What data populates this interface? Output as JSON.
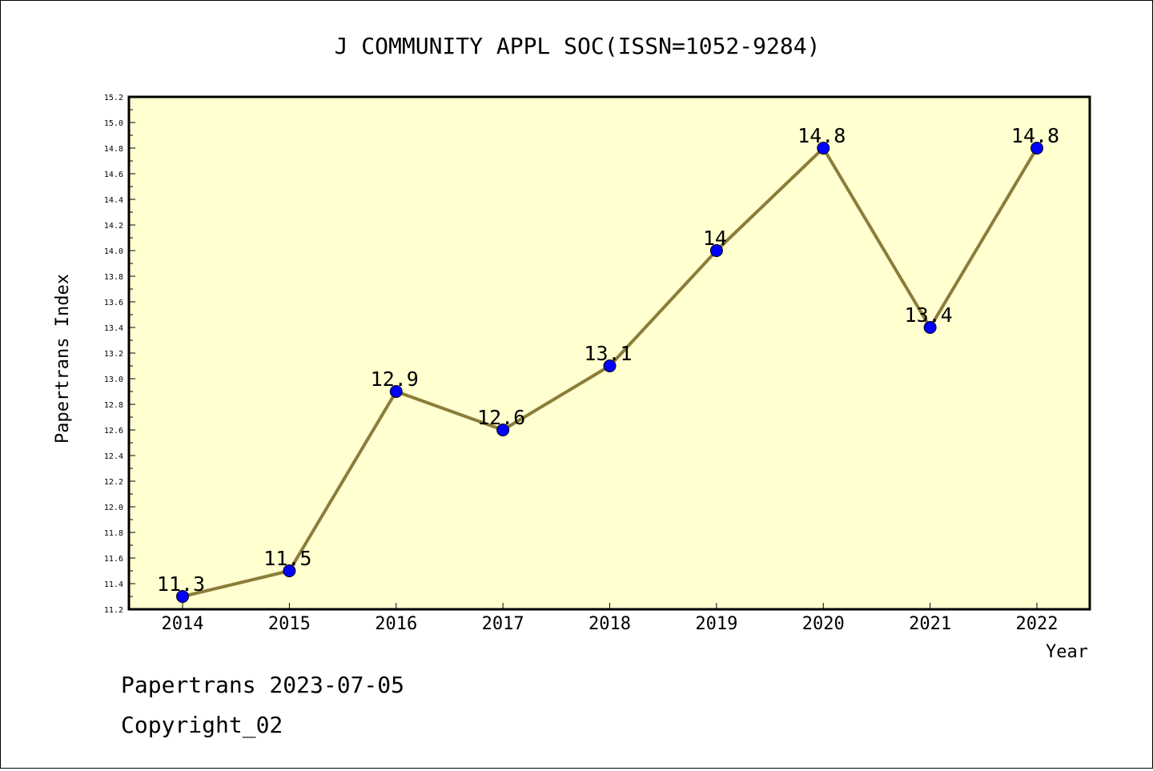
{
  "chart_data": {
    "type": "line",
    "title": "J COMMUNITY APPL SOC(ISSN=1052-9284)",
    "xlabel": "Year",
    "ylabel": "Papertrans Index",
    "categories": [
      "2014",
      "2015",
      "2016",
      "2017",
      "2018",
      "2019",
      "2020",
      "2021",
      "2022"
    ],
    "values": [
      11.3,
      11.5,
      12.9,
      12.6,
      13.1,
      14.0,
      14.8,
      13.4,
      14.8
    ],
    "data_labels": [
      "11.3",
      "11.5",
      "12.9",
      "12.6",
      "13.1",
      "14",
      "14.8",
      "13.4",
      "14.8"
    ],
    "ylim": [
      11.2,
      15.2
    ],
    "yticks": [
      "11.2",
      "11.4",
      "11.6",
      "11.8",
      "12.0",
      "12.2",
      "12.4",
      "12.6",
      "12.8",
      "13.0",
      "13.2",
      "13.4",
      "13.6",
      "13.8",
      "14.0",
      "14.2",
      "14.4",
      "14.6",
      "14.8",
      "15.0",
      "15.2"
    ],
    "grid": false,
    "legend": "none",
    "colors": {
      "plot_background": "#ffffd0",
      "line": "#8b7d3a",
      "marker": "#0000ff"
    }
  },
  "footer": {
    "line1": "Papertrans 2023-07-05",
    "line2": "Copyright_02"
  }
}
